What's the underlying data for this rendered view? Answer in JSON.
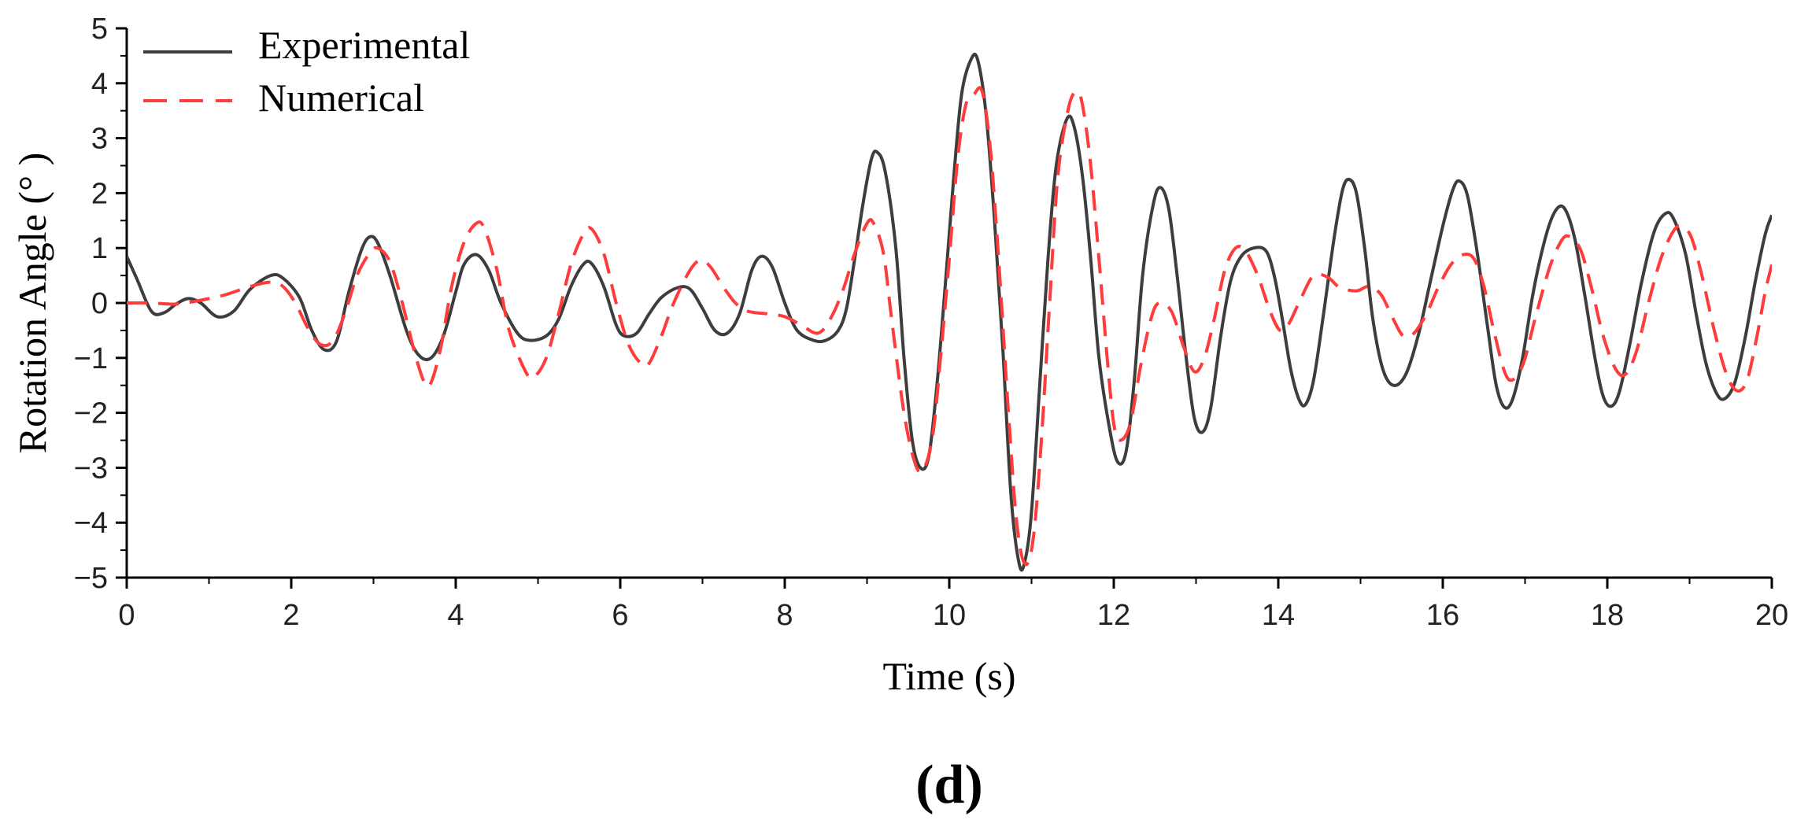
{
  "panel_label": "(d)",
  "colors": {
    "experimental": "#3d3d3d",
    "numerical": "#ff3b3b",
    "axis": "#000000"
  },
  "chart_data": {
    "type": "line",
    "title": "",
    "xlabel": "Time (s)",
    "ylabel": "Rotation Angle  (° )",
    "xlim": [
      0,
      20
    ],
    "ylim": [
      -5,
      5
    ],
    "xticks": [
      0,
      2,
      4,
      6,
      8,
      10,
      12,
      14,
      16,
      18,
      20
    ],
    "yticks": [
      -5,
      -4,
      -3,
      -2,
      -1,
      0,
      1,
      2,
      3,
      4,
      5
    ],
    "ytick_labels": [
      "−5",
      "−4",
      "−3",
      "−2",
      "−1",
      "0",
      "1",
      "2",
      "3",
      "4",
      "5"
    ],
    "grid": false,
    "legend": "top-left",
    "series": [
      {
        "name": "Experimental",
        "style": "solid",
        "color": "#3d3d3d",
        "points": [
          [
            0,
            0.85
          ],
          [
            0.12,
            0.45
          ],
          [
            0.3,
            -0.15
          ],
          [
            0.45,
            -0.18
          ],
          [
            0.6,
            -0.02
          ],
          [
            0.75,
            0.08
          ],
          [
            0.9,
            0.0
          ],
          [
            1.1,
            -0.25
          ],
          [
            1.3,
            -0.15
          ],
          [
            1.5,
            0.25
          ],
          [
            1.75,
            0.5
          ],
          [
            1.9,
            0.45
          ],
          [
            2.1,
            0.1
          ],
          [
            2.25,
            -0.5
          ],
          [
            2.4,
            -0.85
          ],
          [
            2.55,
            -0.7
          ],
          [
            2.7,
            0.2
          ],
          [
            2.85,
            0.95
          ],
          [
            2.95,
            1.2
          ],
          [
            3.05,
            1.1
          ],
          [
            3.2,
            0.5
          ],
          [
            3.4,
            -0.5
          ],
          [
            3.55,
            -0.95
          ],
          [
            3.7,
            -1.0
          ],
          [
            3.85,
            -0.6
          ],
          [
            4.0,
            0.2
          ],
          [
            4.1,
            0.7
          ],
          [
            4.25,
            0.88
          ],
          [
            4.4,
            0.6
          ],
          [
            4.55,
            0.0
          ],
          [
            4.75,
            -0.55
          ],
          [
            4.9,
            -0.68
          ],
          [
            5.1,
            -0.6
          ],
          [
            5.25,
            -0.3
          ],
          [
            5.4,
            0.3
          ],
          [
            5.55,
            0.7
          ],
          [
            5.65,
            0.72
          ],
          [
            5.8,
            0.3
          ],
          [
            5.95,
            -0.4
          ],
          [
            6.05,
            -0.6
          ],
          [
            6.2,
            -0.55
          ],
          [
            6.35,
            -0.2
          ],
          [
            6.5,
            0.1
          ],
          [
            6.7,
            0.28
          ],
          [
            6.85,
            0.25
          ],
          [
            7.0,
            -0.1
          ],
          [
            7.15,
            -0.5
          ],
          [
            7.3,
            -0.55
          ],
          [
            7.45,
            -0.2
          ],
          [
            7.6,
            0.6
          ],
          [
            7.72,
            0.85
          ],
          [
            7.85,
            0.65
          ],
          [
            8.0,
            0.0
          ],
          [
            8.15,
            -0.5
          ],
          [
            8.35,
            -0.68
          ],
          [
            8.5,
            -0.68
          ],
          [
            8.65,
            -0.5
          ],
          [
            8.75,
            -0.1
          ],
          [
            8.85,
            0.8
          ],
          [
            8.95,
            1.8
          ],
          [
            9.05,
            2.6
          ],
          [
            9.12,
            2.75
          ],
          [
            9.22,
            2.4
          ],
          [
            9.35,
            1.0
          ],
          [
            9.45,
            -1.0
          ],
          [
            9.55,
            -2.5
          ],
          [
            9.65,
            -3.0
          ],
          [
            9.75,
            -2.8
          ],
          [
            9.85,
            -1.5
          ],
          [
            9.95,
            0.3
          ],
          [
            10.05,
            2.2
          ],
          [
            10.15,
            3.8
          ],
          [
            10.27,
            4.45
          ],
          [
            10.35,
            4.4
          ],
          [
            10.45,
            3.4
          ],
          [
            10.55,
            1.5
          ],
          [
            10.65,
            -0.8
          ],
          [
            10.75,
            -3.5
          ],
          [
            10.85,
            -4.75
          ],
          [
            10.92,
            -4.7
          ],
          [
            11.0,
            -3.8
          ],
          [
            11.1,
            -1.5
          ],
          [
            11.2,
            0.8
          ],
          [
            11.3,
            2.5
          ],
          [
            11.43,
            3.35
          ],
          [
            11.52,
            3.2
          ],
          [
            11.62,
            2.3
          ],
          [
            11.72,
            0.8
          ],
          [
            11.82,
            -1.0
          ],
          [
            11.95,
            -2.3
          ],
          [
            12.05,
            -2.9
          ],
          [
            12.15,
            -2.7
          ],
          [
            12.25,
            -1.4
          ],
          [
            12.35,
            0.5
          ],
          [
            12.48,
            1.8
          ],
          [
            12.57,
            2.1
          ],
          [
            12.67,
            1.7
          ],
          [
            12.77,
            0.5
          ],
          [
            12.88,
            -1.0
          ],
          [
            12.98,
            -2.1
          ],
          [
            13.08,
            -2.35
          ],
          [
            13.18,
            -1.9
          ],
          [
            13.3,
            -0.6
          ],
          [
            13.42,
            0.4
          ],
          [
            13.55,
            0.85
          ],
          [
            13.7,
            1.0
          ],
          [
            13.85,
            0.95
          ],
          [
            13.95,
            0.5
          ],
          [
            14.05,
            -0.3
          ],
          [
            14.15,
            -1.2
          ],
          [
            14.25,
            -1.75
          ],
          [
            14.33,
            -1.85
          ],
          [
            14.43,
            -1.4
          ],
          [
            14.55,
            -0.2
          ],
          [
            14.68,
            1.2
          ],
          [
            14.78,
            2.05
          ],
          [
            14.86,
            2.25
          ],
          [
            14.95,
            2.0
          ],
          [
            15.05,
            1.0
          ],
          [
            15.15,
            -0.3
          ],
          [
            15.27,
            -1.2
          ],
          [
            15.4,
            -1.5
          ],
          [
            15.55,
            -1.3
          ],
          [
            15.7,
            -0.6
          ],
          [
            15.85,
            0.4
          ],
          [
            16.0,
            1.4
          ],
          [
            16.12,
            2.05
          ],
          [
            16.2,
            2.22
          ],
          [
            16.3,
            1.95
          ],
          [
            16.42,
            0.9
          ],
          [
            16.55,
            -0.5
          ],
          [
            16.65,
            -1.5
          ],
          [
            16.75,
            -1.9
          ],
          [
            16.85,
            -1.75
          ],
          [
            16.97,
            -1.0
          ],
          [
            17.1,
            0.2
          ],
          [
            17.25,
            1.2
          ],
          [
            17.37,
            1.68
          ],
          [
            17.48,
            1.72
          ],
          [
            17.6,
            1.2
          ],
          [
            17.72,
            0.2
          ],
          [
            17.85,
            -1.0
          ],
          [
            17.95,
            -1.7
          ],
          [
            18.05,
            -1.88
          ],
          [
            18.15,
            -1.6
          ],
          [
            18.28,
            -0.7
          ],
          [
            18.42,
            0.4
          ],
          [
            18.57,
            1.3
          ],
          [
            18.7,
            1.62
          ],
          [
            18.8,
            1.55
          ],
          [
            18.95,
            0.9
          ],
          [
            19.08,
            -0.2
          ],
          [
            19.2,
            -1.1
          ],
          [
            19.32,
            -1.62
          ],
          [
            19.42,
            -1.75
          ],
          [
            19.55,
            -1.45
          ],
          [
            19.68,
            -0.6
          ],
          [
            19.8,
            0.4
          ],
          [
            19.92,
            1.25
          ],
          [
            20.0,
            1.6
          ]
        ]
      },
      {
        "name": "Numerical",
        "style": "dashed",
        "color": "#ff3b3b",
        "points": [
          [
            0,
            0.0
          ],
          [
            0.3,
            0.0
          ],
          [
            0.6,
            -0.02
          ],
          [
            0.9,
            0.05
          ],
          [
            1.2,
            0.15
          ],
          [
            1.5,
            0.3
          ],
          [
            1.75,
            0.38
          ],
          [
            1.9,
            0.3
          ],
          [
            2.05,
            0.0
          ],
          [
            2.2,
            -0.45
          ],
          [
            2.35,
            -0.75
          ],
          [
            2.5,
            -0.7
          ],
          [
            2.65,
            -0.2
          ],
          [
            2.8,
            0.5
          ],
          [
            2.95,
            0.9
          ],
          [
            3.05,
            1.0
          ],
          [
            3.2,
            0.75
          ],
          [
            3.35,
            0.0
          ],
          [
            3.5,
            -0.9
          ],
          [
            3.62,
            -1.45
          ],
          [
            3.7,
            -1.45
          ],
          [
            3.82,
            -0.8
          ],
          [
            3.95,
            0.3
          ],
          [
            4.1,
            1.1
          ],
          [
            4.25,
            1.45
          ],
          [
            4.35,
            1.35
          ],
          [
            4.5,
            0.6
          ],
          [
            4.65,
            -0.5
          ],
          [
            4.85,
            -1.25
          ],
          [
            4.95,
            -1.35
          ],
          [
            5.1,
            -1.0
          ],
          [
            5.25,
            -0.2
          ],
          [
            5.4,
            0.7
          ],
          [
            5.55,
            1.25
          ],
          [
            5.65,
            1.35
          ],
          [
            5.8,
            0.9
          ],
          [
            5.95,
            0.0
          ],
          [
            6.1,
            -0.75
          ],
          [
            6.25,
            -1.1
          ],
          [
            6.35,
            -1.1
          ],
          [
            6.5,
            -0.6
          ],
          [
            6.65,
            0.0
          ],
          [
            6.85,
            0.6
          ],
          [
            6.98,
            0.78
          ],
          [
            7.1,
            0.65
          ],
          [
            7.25,
            0.3
          ],
          [
            7.4,
            0.0
          ],
          [
            7.55,
            -0.15
          ],
          [
            7.8,
            -0.2
          ],
          [
            8.0,
            -0.25
          ],
          [
            8.2,
            -0.4
          ],
          [
            8.4,
            -0.55
          ],
          [
            8.55,
            -0.3
          ],
          [
            8.7,
            0.2
          ],
          [
            8.85,
            0.9
          ],
          [
            9.0,
            1.45
          ],
          [
            9.08,
            1.45
          ],
          [
            9.2,
            0.9
          ],
          [
            9.3,
            -0.3
          ],
          [
            9.45,
            -2.0
          ],
          [
            9.58,
            -2.9
          ],
          [
            9.68,
            -3.05
          ],
          [
            9.8,
            -2.4
          ],
          [
            9.9,
            -0.9
          ],
          [
            10.0,
            0.8
          ],
          [
            10.1,
            2.6
          ],
          [
            10.2,
            3.6
          ],
          [
            10.3,
            3.8
          ],
          [
            10.4,
            3.85
          ],
          [
            10.5,
            2.8
          ],
          [
            10.6,
            0.8
          ],
          [
            10.72,
            -2.0
          ],
          [
            10.82,
            -4.0
          ],
          [
            10.92,
            -4.75
          ],
          [
            11.02,
            -4.3
          ],
          [
            11.12,
            -2.5
          ],
          [
            11.22,
            0.0
          ],
          [
            11.32,
            2.3
          ],
          [
            11.45,
            3.55
          ],
          [
            11.55,
            3.85
          ],
          [
            11.62,
            3.6
          ],
          [
            11.72,
            2.5
          ],
          [
            11.82,
            0.8
          ],
          [
            11.92,
            -1.0
          ],
          [
            12.0,
            -2.2
          ],
          [
            12.08,
            -2.5
          ],
          [
            12.2,
            -2.2
          ],
          [
            12.32,
            -1.2
          ],
          [
            12.45,
            -0.3
          ],
          [
            12.55,
            0.0
          ],
          [
            12.7,
            -0.15
          ],
          [
            12.85,
            -0.8
          ],
          [
            12.98,
            -1.25
          ],
          [
            13.1,
            -1.0
          ],
          [
            13.22,
            -0.3
          ],
          [
            13.35,
            0.6
          ],
          [
            13.48,
            1.0
          ],
          [
            13.6,
            0.95
          ],
          [
            13.75,
            0.5
          ],
          [
            13.9,
            -0.15
          ],
          [
            14.02,
            -0.5
          ],
          [
            14.12,
            -0.4
          ],
          [
            14.25,
            0.0
          ],
          [
            14.4,
            0.45
          ],
          [
            14.5,
            0.52
          ],
          [
            14.62,
            0.45
          ],
          [
            14.75,
            0.28
          ],
          [
            14.95,
            0.22
          ],
          [
            15.1,
            0.3
          ],
          [
            15.25,
            0.15
          ],
          [
            15.4,
            -0.3
          ],
          [
            15.52,
            -0.6
          ],
          [
            15.65,
            -0.55
          ],
          [
            15.8,
            -0.2
          ],
          [
            15.95,
            0.3
          ],
          [
            16.1,
            0.7
          ],
          [
            16.25,
            0.88
          ],
          [
            16.38,
            0.8
          ],
          [
            16.5,
            0.3
          ],
          [
            16.62,
            -0.5
          ],
          [
            16.75,
            -1.25
          ],
          [
            16.85,
            -1.4
          ],
          [
            16.98,
            -1.1
          ],
          [
            17.12,
            -0.3
          ],
          [
            17.3,
            0.65
          ],
          [
            17.45,
            1.15
          ],
          [
            17.55,
            1.2
          ],
          [
            17.68,
            0.95
          ],
          [
            17.82,
            0.2
          ],
          [
            17.95,
            -0.6
          ],
          [
            18.1,
            -1.2
          ],
          [
            18.22,
            -1.3
          ],
          [
            18.35,
            -0.9
          ],
          [
            18.5,
            0.0
          ],
          [
            18.65,
            0.8
          ],
          [
            18.8,
            1.3
          ],
          [
            18.9,
            1.4
          ],
          [
            19.02,
            1.2
          ],
          [
            19.15,
            0.5
          ],
          [
            19.3,
            -0.5
          ],
          [
            19.45,
            -1.3
          ],
          [
            19.58,
            -1.6
          ],
          [
            19.7,
            -1.4
          ],
          [
            19.82,
            -0.6
          ],
          [
            19.92,
            0.2
          ],
          [
            20.0,
            0.7
          ]
        ]
      }
    ]
  }
}
